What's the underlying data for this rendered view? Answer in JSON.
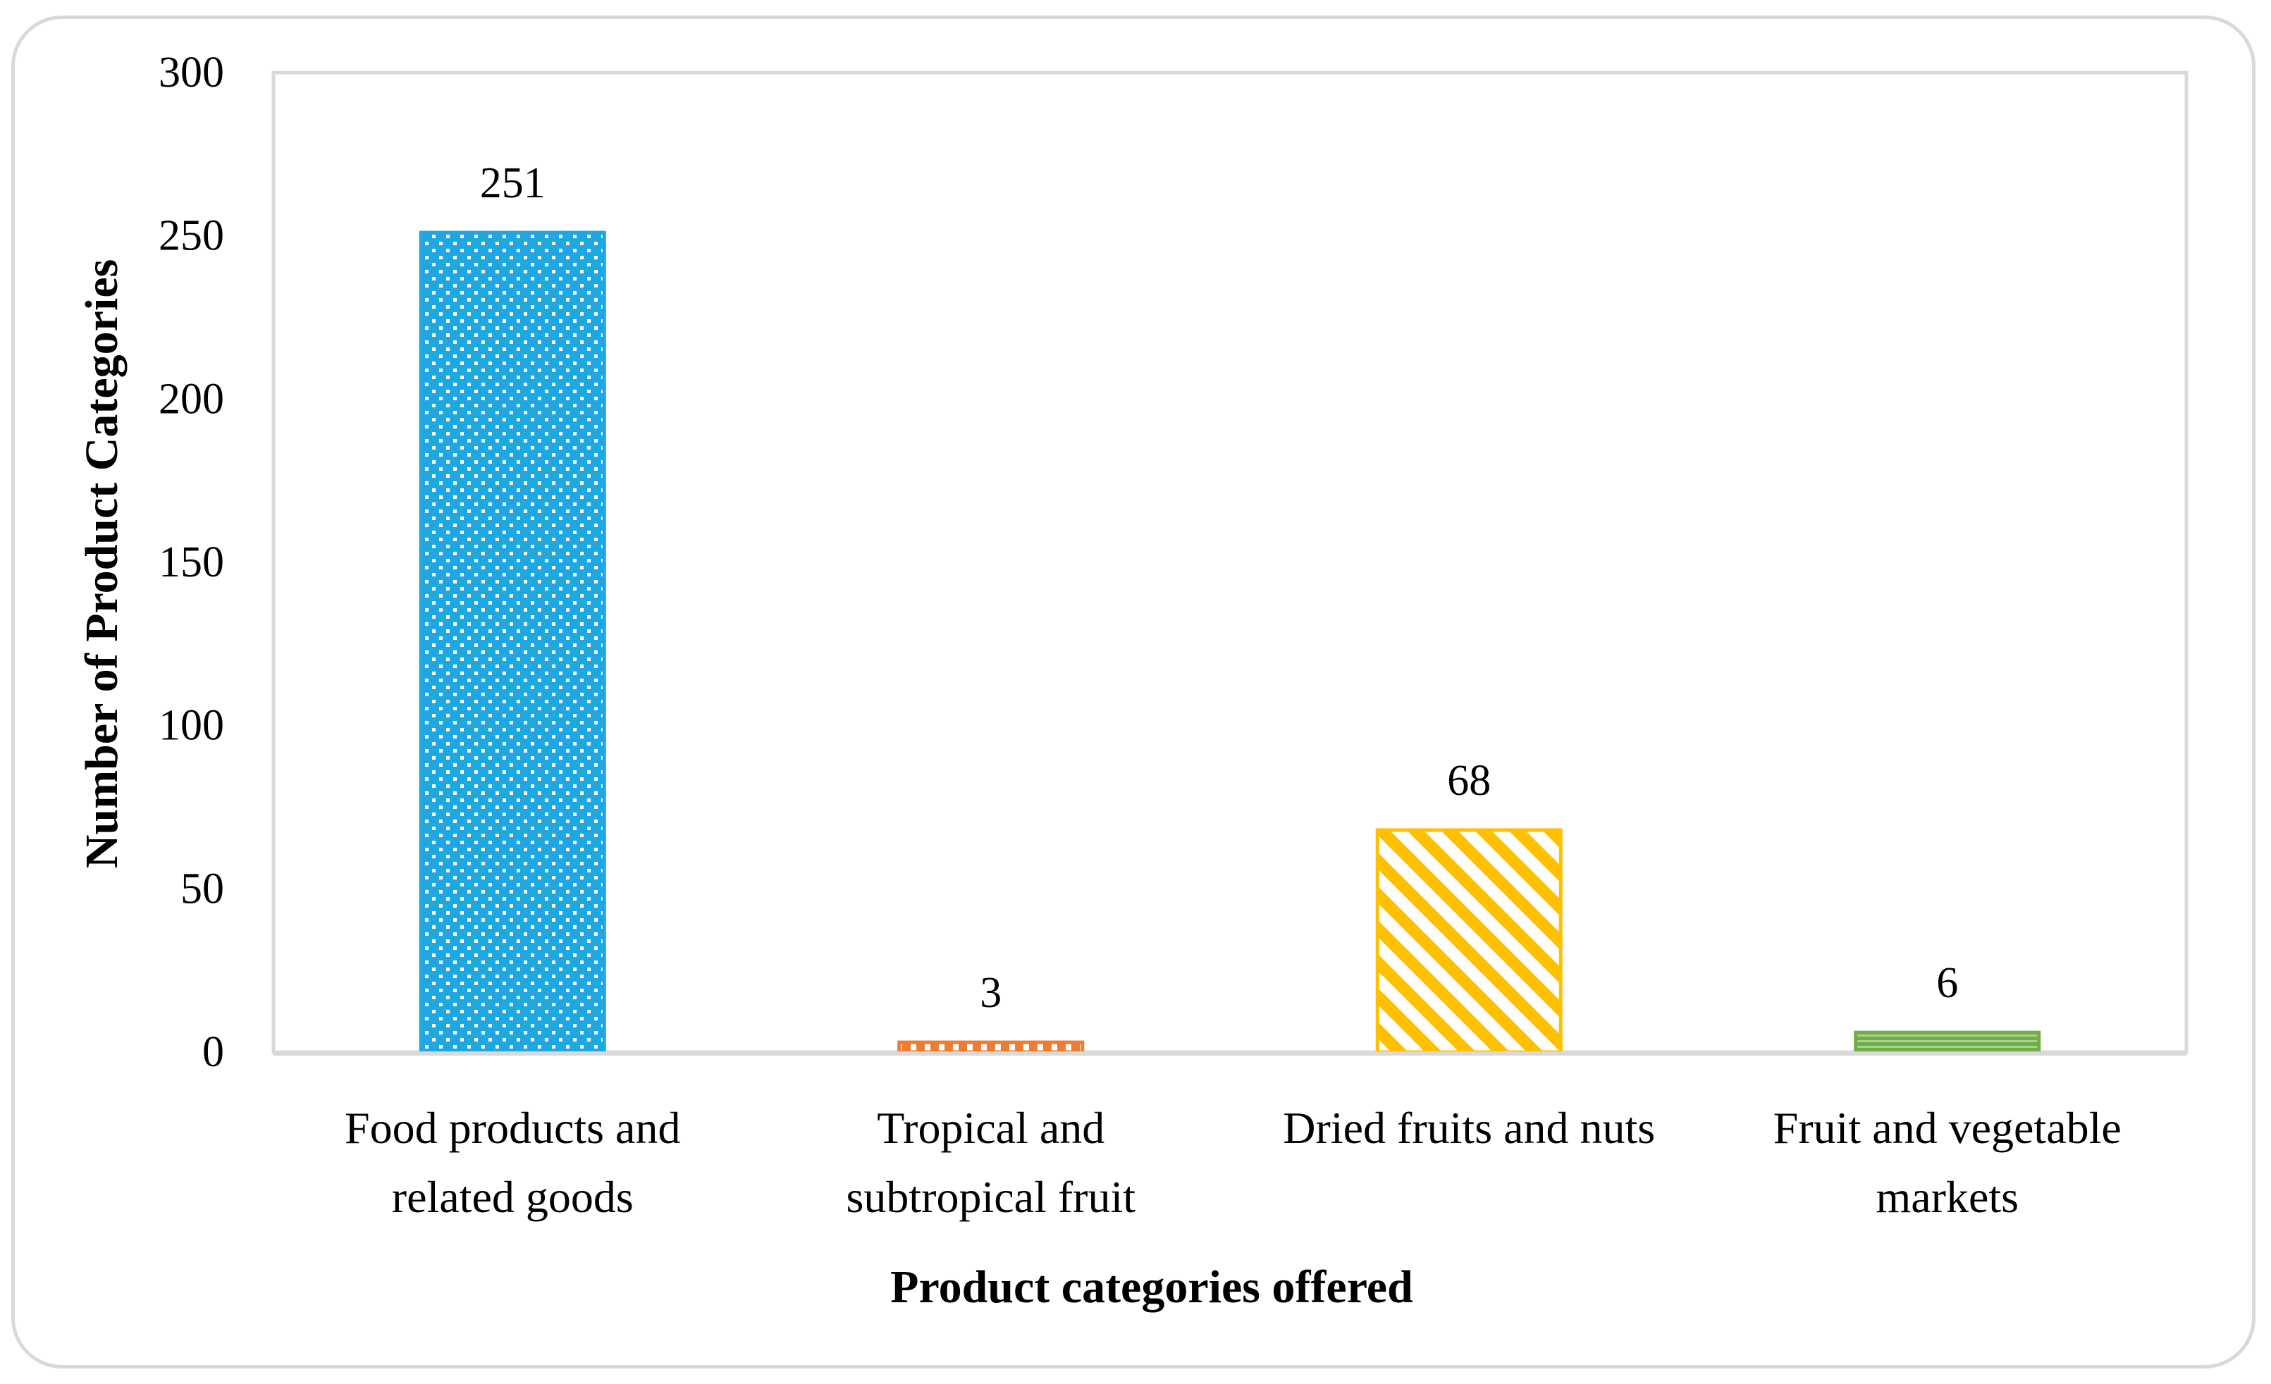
{
  "chart_data": {
    "type": "bar",
    "title": "",
    "xlabel": "Product categories offered",
    "ylabel": "Number of Product Categories",
    "ylim": [
      0,
      300
    ],
    "yticks": [
      0,
      50,
      100,
      150,
      200,
      250,
      300
    ],
    "ytick_labels": [
      "0",
      "50",
      "100",
      "150",
      "200",
      "250",
      "300"
    ],
    "grid": false,
    "legend": "none",
    "categories": [
      [
        "Food products and",
        "related goods"
      ],
      [
        "Tropical and",
        "subtropical fruit"
      ],
      [
        "Dried fruits and nuts"
      ],
      [
        "Fruit and vegetable",
        "markets"
      ]
    ],
    "values": [
      251,
      3,
      68,
      6
    ],
    "data_labels": [
      "251",
      "3",
      "68",
      "6"
    ],
    "colors": [
      "#1ea7e1",
      "#ed7d31",
      "#ffc000",
      "#70ad47"
    ],
    "patterns": [
      "dotted-grid",
      "dashed",
      "diagonal-hatch",
      "horizontal-lines"
    ]
  }
}
